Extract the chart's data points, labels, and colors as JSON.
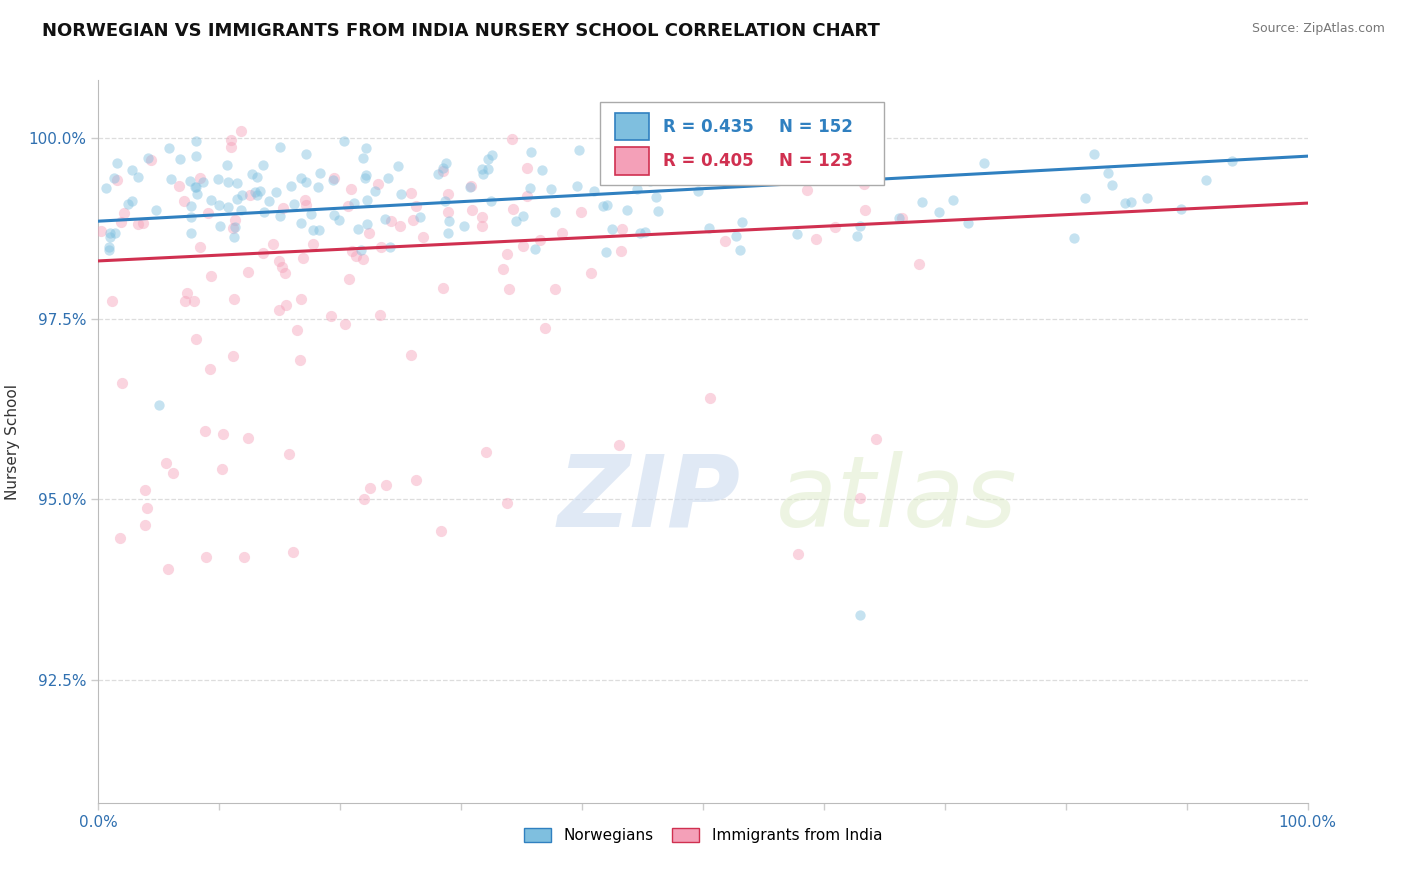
{
  "title": "NORWEGIAN VS IMMIGRANTS FROM INDIA NURSERY SCHOOL CORRELATION CHART",
  "source": "Source: ZipAtlas.com",
  "ylabel": "Nursery School",
  "xlim": [
    0.0,
    1.0
  ],
  "ylim": [
    0.908,
    1.008
  ],
  "yticks": [
    0.925,
    0.95,
    0.975,
    1.0
  ],
  "ytick_labels": [
    "92.5%",
    "95.0%",
    "97.5%",
    "100.0%"
  ],
  "legend_r_norwegian": "R = 0.435",
  "legend_n_norwegian": "N = 152",
  "legend_r_india": "R = 0.405",
  "legend_n_india": "N = 123",
  "norwegian_color": "#7fbfdf",
  "india_color": "#f4a0b8",
  "norwegian_line_color": "#3080c0",
  "india_line_color": "#d03050",
  "background_color": "#ffffff",
  "title_fontsize": 13,
  "dot_size_nor": 55,
  "dot_size_ind": 65,
  "dot_alpha": 0.45
}
